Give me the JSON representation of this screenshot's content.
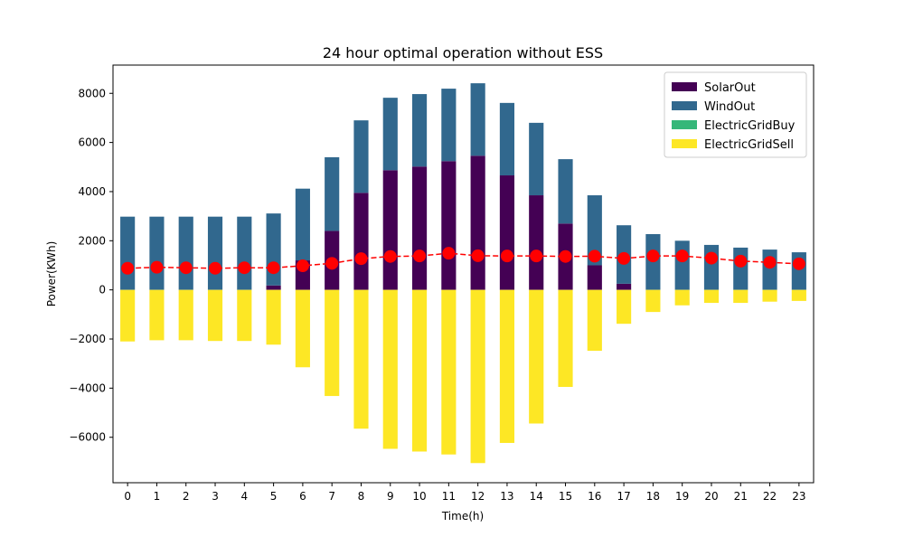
{
  "chart_data": {
    "type": "bar",
    "title": "24 hour optimal operation without ESS",
    "xlabel": "Time(h)",
    "ylabel": "Power(KWh)",
    "categories": [
      "0",
      "1",
      "2",
      "3",
      "4",
      "5",
      "6",
      "7",
      "8",
      "9",
      "10",
      "11",
      "12",
      "13",
      "14",
      "15",
      "16",
      "17",
      "18",
      "19",
      "20",
      "21",
      "22",
      "23"
    ],
    "ylim": [
      -7850,
      9150
    ],
    "yticks": [
      -6000,
      -4000,
      -2000,
      0,
      2000,
      4000,
      6000,
      8000
    ],
    "ytick_labels": [
      "−6000",
      "−4000",
      "−2000",
      "0",
      "2000",
      "4000",
      "6000",
      "8000"
    ],
    "stacked": true,
    "legend_position": "top-right",
    "grid": false,
    "series": [
      {
        "name": "SolarOut",
        "color": "#440154",
        "values": [
          0,
          0,
          0,
          0,
          0,
          180,
          1200,
          2400,
          3950,
          4870,
          5020,
          5240,
          5460,
          4660,
          3850,
          2700,
          1000,
          250,
          0,
          0,
          0,
          0,
          0,
          0
        ]
      },
      {
        "name": "WindOut",
        "color": "#31688e",
        "values": [
          2980,
          2980,
          2980,
          2980,
          2980,
          2930,
          2920,
          3000,
          2950,
          2950,
          2950,
          2950,
          2950,
          2950,
          2950,
          2620,
          2850,
          2380,
          2270,
          2000,
          1830,
          1720,
          1640,
          1530
        ]
      },
      {
        "name": "ElectricGridBuy",
        "color": "#35b779",
        "values": [
          0,
          0,
          0,
          0,
          0,
          0,
          0,
          0,
          0,
          0,
          0,
          0,
          0,
          0,
          0,
          0,
          0,
          0,
          0,
          0,
          0,
          0,
          0,
          0
        ]
      },
      {
        "name": "ElectricGridSell",
        "color": "#fde725",
        "values": [
          -2100,
          -2050,
          -2050,
          -2080,
          -2080,
          -2230,
          -3150,
          -4320,
          -5650,
          -6470,
          -6580,
          -6700,
          -7050,
          -6230,
          -5440,
          -3950,
          -2480,
          -1380,
          -900,
          -630,
          -530,
          -530,
          -480,
          -450
        ]
      }
    ],
    "load_line": {
      "color": "#ff0000",
      "style": "dashed",
      "marker": "circle",
      "values": [
        880,
        920,
        900,
        880,
        900,
        900,
        980,
        1080,
        1270,
        1360,
        1380,
        1490,
        1390,
        1380,
        1380,
        1360,
        1370,
        1280,
        1380,
        1380,
        1290,
        1170,
        1120,
        1060
      ]
    }
  }
}
